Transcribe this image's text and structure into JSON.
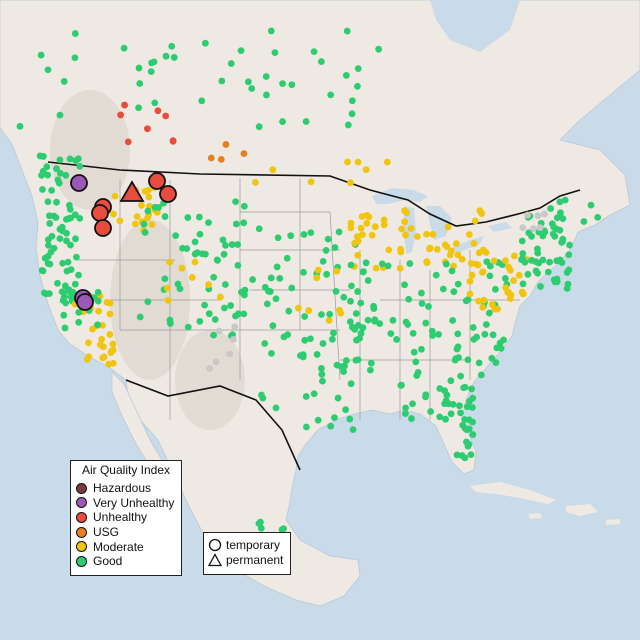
{
  "legend": {
    "title": "Air Quality Index",
    "categories": [
      {
        "label": "Hazardous",
        "color": "#7e3a3a"
      },
      {
        "label": "Very Unhealthy",
        "color": "#9b59b6"
      },
      {
        "label": "Unhealthy",
        "color": "#e74c3c"
      },
      {
        "label": "USG",
        "color": "#e67e22"
      },
      {
        "label": "Moderate",
        "color": "#f1c40f"
      },
      {
        "label": "Good",
        "color": "#2ecc71"
      }
    ]
  },
  "shape_legend": {
    "items": [
      {
        "label": "temporary",
        "icon": "circle-icon"
      },
      {
        "label": "permanent",
        "icon": "triangle-icon"
      }
    ]
  },
  "colors": {
    "water": "#c9dbe9",
    "land": "#eeeae4",
    "land_canada": "#efe7e2",
    "mountains": "#d8d2c8",
    "state_border": "#9a9a9a",
    "country_border": "#111111",
    "no_data": "#c8c8c8"
  }
}
